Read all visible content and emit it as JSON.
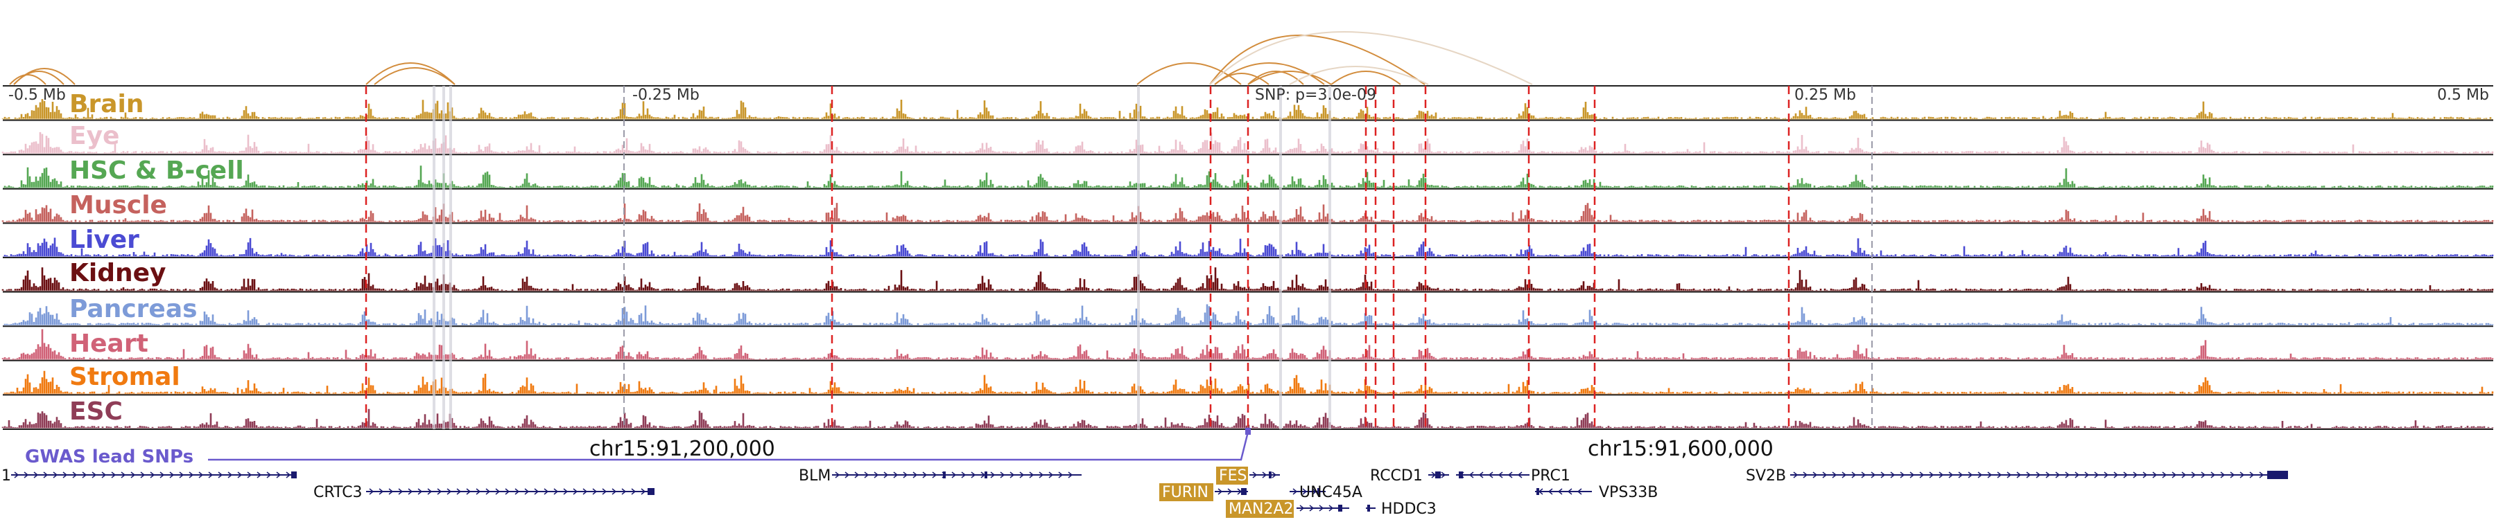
{
  "scale": {
    "left_label": "-0.5 Mb",
    "mid_left_label": "-0.25 Mb",
    "snp_label": "SNP: p=3.0e-09",
    "mid_right_label": "0.25 Mb",
    "right_label": "0.5 Mb"
  },
  "tracks": [
    {
      "name": "Brain",
      "color": "#c9962a"
    },
    {
      "name": "Eye",
      "color": "#ebbfcb"
    },
    {
      "name": "HSC & B-cell",
      "color": "#55a753"
    },
    {
      "name": "Muscle",
      "color": "#c5625e"
    },
    {
      "name": "Liver",
      "color": "#4b4bd3"
    },
    {
      "name": "Kidney",
      "color": "#6b0f12"
    },
    {
      "name": "Pancreas",
      "color": "#7d9bd8"
    },
    {
      "name": "Heart",
      "color": "#d06277"
    },
    {
      "name": "Stromal",
      "color": "#f07a10"
    },
    {
      "name": "ESC",
      "color": "#8f3d57"
    }
  ],
  "coordinates": {
    "left": "chr15:91,200,000",
    "right": "chr15:91,600,000"
  },
  "gwas": {
    "label": "GWAS lead SNPs",
    "color": "#6a5acd"
  },
  "genes": [
    {
      "name": "1",
      "highlighted": false
    },
    {
      "name": "CRTC3",
      "highlighted": false
    },
    {
      "name": "BLM",
      "highlighted": false
    },
    {
      "name": "FES",
      "highlighted": true
    },
    {
      "name": "FURIN",
      "highlighted": true
    },
    {
      "name": "MAN2A2",
      "highlighted": true
    },
    {
      "name": "UNC45A",
      "highlighted": false
    },
    {
      "name": "HDDC3",
      "highlighted": false
    },
    {
      "name": "RCCD1",
      "highlighted": false
    },
    {
      "name": "PRC1",
      "highlighted": false
    },
    {
      "name": "VPS33B",
      "highlighted": false
    },
    {
      "name": "SV2B",
      "highlighted": false
    }
  ],
  "colors": {
    "highlight_gene_bg": "#c9962a",
    "gene_color": "#1a1a6e",
    "loop_color": "#d28c3c",
    "red_line": "#dd2222"
  }
}
